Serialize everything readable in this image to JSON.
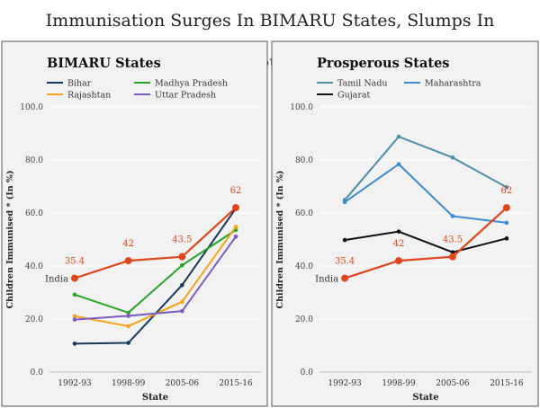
{
  "page_title": "Immunisation Surges In BIMARU States, Slumps In Prosperous States",
  "colors": {
    "india": "#e0451c",
    "bihar": "#1a3a5c",
    "madhya_pradesh": "#29a329",
    "rajasthan": "#f5a31a",
    "uttar_pradesh": "#7a5cc2",
    "tamil_nadu": "#4f8fa6",
    "maharashtra": "#3f8bd0",
    "gujarat": "#111111",
    "panel_bg": "#f2f2f2",
    "grid": "#ffffff"
  },
  "chart_data": [
    {
      "type": "line",
      "title": "BIMARU States",
      "xlabel": "State",
      "ylabel": "Children Immunised * (In %)",
      "ylim": [
        0,
        100
      ],
      "yticks": [
        "0.0",
        "20.0",
        "40.0",
        "60.0",
        "80.0",
        "100.0"
      ],
      "categories": [
        "1992-93",
        "1998-99",
        "2005-06",
        "2015-16"
      ],
      "legend_position": "top",
      "series": [
        {
          "name": "Bihar",
          "key": "bihar",
          "values": [
            10.7,
            11.0,
            32.8,
            61.7
          ]
        },
        {
          "name": "Madhya Pradesh",
          "key": "madhya_pradesh",
          "values": [
            29.2,
            22.4,
            40.3,
            53.6
          ]
        },
        {
          "name": "Rajashtan",
          "key": "rajasthan",
          "values": [
            21.1,
            17.3,
            26.5,
            54.8
          ]
        },
        {
          "name": "Uttar Pradesh",
          "key": "uttar_pradesh",
          "values": [
            19.8,
            21.2,
            23.0,
            51.1
          ]
        }
      ],
      "reference": {
        "name": "India",
        "key": "india",
        "values": [
          35.4,
          42,
          43.5,
          62
        ],
        "labels": [
          "35.4",
          "42",
          "43.5",
          "62"
        ]
      }
    },
    {
      "type": "line",
      "title": "Prosperous States",
      "xlabel": "State",
      "ylabel": "Children Immunised * (In %)",
      "ylim": [
        0,
        100
      ],
      "yticks": [
        "0.0",
        "20.0",
        "40.0",
        "60.0",
        "80.0",
        "100.0"
      ],
      "categories": [
        "1992-93",
        "1998-99",
        "2005-06",
        "2015-16"
      ],
      "legend_position": "top",
      "series": [
        {
          "name": "Tamil Nadu",
          "key": "tamil_nadu",
          "values": [
            64.9,
            88.8,
            80.9,
            69.7
          ]
        },
        {
          "name": "Maharashtra",
          "key": "maharashtra",
          "values": [
            64.1,
            78.4,
            58.8,
            56.3
          ]
        },
        {
          "name": "Gujarat",
          "key": "gujarat",
          "values": [
            49.8,
            53.0,
            45.2,
            50.4
          ]
        }
      ],
      "reference": {
        "name": "India",
        "key": "india",
        "values": [
          35.4,
          42,
          43.5,
          62
        ],
        "labels": [
          "35.4",
          "42",
          "43.5",
          "62"
        ]
      }
    }
  ]
}
